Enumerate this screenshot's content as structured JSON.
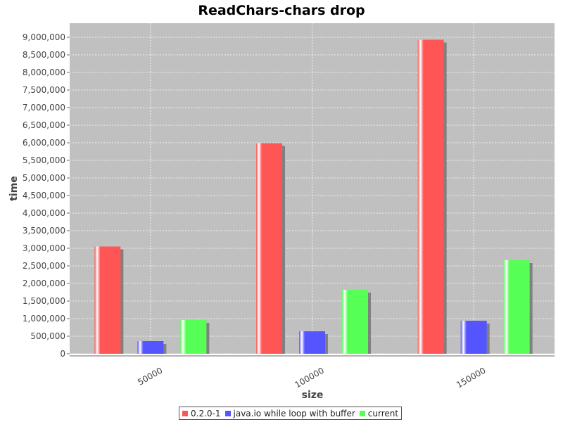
{
  "chart_data": {
    "type": "bar",
    "title": "ReadChars-chars drop",
    "xlabel": "size",
    "ylabel": "time",
    "categories": [
      "50000",
      "100000",
      "150000"
    ],
    "series": [
      {
        "name": "0.2.0-1",
        "color": "#ff5555",
        "values": [
          3050000,
          5990000,
          8930000
        ]
      },
      {
        "name": "java.io while loop with buffer",
        "color": "#5555ff",
        "values": [
          360000,
          640000,
          940000
        ]
      },
      {
        "name": "current",
        "color": "#55ff55",
        "values": [
          960000,
          1820000,
          2660000
        ]
      }
    ],
    "ylim": [
      0,
      9400000
    ],
    "yticks": [
      "0",
      "500,000",
      "1,000,000",
      "1,500,000",
      "2,000,000",
      "2,500,000",
      "3,000,000",
      "3,500,000",
      "4,000,000",
      "4,500,000",
      "5,000,000",
      "5,500,000",
      "6,000,000",
      "6,500,000",
      "7,000,000",
      "7,500,000",
      "8,000,000",
      "8,500,000",
      "9,000,000"
    ],
    "ytick_values": [
      0,
      500000,
      1000000,
      1500000,
      2000000,
      2500000,
      3000000,
      3500000,
      4000000,
      4500000,
      5000000,
      5500000,
      6000000,
      6500000,
      7000000,
      7500000,
      8000000,
      8500000,
      9000000
    ],
    "grid": true,
    "legend_position": "bottom",
    "plot_background": "#c0c0c0"
  }
}
